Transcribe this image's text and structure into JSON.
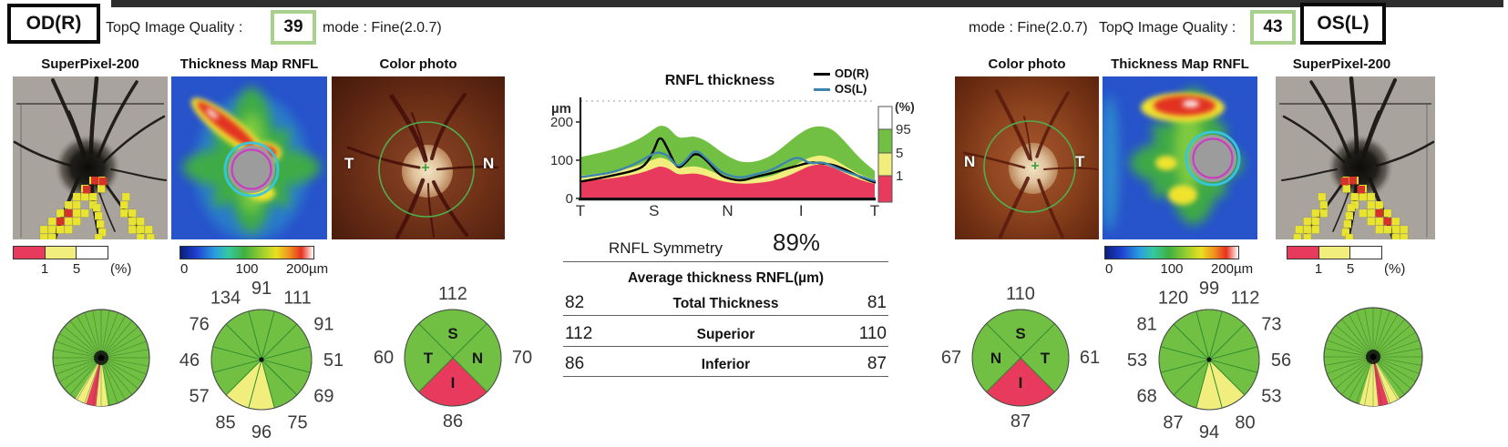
{
  "header": {
    "od": {
      "eye": "OD(R)",
      "quality_label": "TopQ Image Quality :",
      "quality_value": "39",
      "mode": "mode : Fine(2.0.7)"
    },
    "os": {
      "eye": "OS(L)",
      "quality_label": "TopQ Image Quality :",
      "quality_value": "43",
      "mode": "mode : Fine(2.0.7)"
    }
  },
  "panels": {
    "od": {
      "superpixel_label": "SuperPixel-200",
      "map_label": "Thickness Map RNFL",
      "photo_label": "Color photo",
      "photo_left": "T",
      "photo_right": "N",
      "pct_scale": {
        "t1": "1",
        "t5": "5",
        "unit": "(%)"
      },
      "um_scale": {
        "t0": "0",
        "t100": "100",
        "t200": "200µm"
      }
    },
    "os": {
      "superpixel_label": "SuperPixel-200",
      "map_label": "Thickness Map RNFL",
      "photo_label": "Color photo",
      "photo_left": "N",
      "photo_right": "T",
      "pct_scale": {
        "t1": "1",
        "t5": "5",
        "unit": "(%)"
      },
      "um_scale": {
        "t0": "0",
        "t100": "100",
        "t200": "200µm"
      }
    }
  },
  "summary": {
    "symmetry_label": "RNFL Symmetry",
    "symmetry_value": "89%",
    "table_title": "Average thickness RNFL(µm)",
    "rows": [
      {
        "od": "82",
        "label": "Total Thickness",
        "os": "81"
      },
      {
        "od": "112",
        "label": "Superior",
        "os": "110"
      },
      {
        "od": "86",
        "label": "Inferior",
        "os": "87"
      }
    ]
  },
  "colors": {
    "sector": {
      "n": "#72c043",
      "b": "#f2ee7d",
      "a": "#e83a5c"
    },
    "od_curve": "#000000",
    "os_curve": "#3d85b0",
    "quality_box_border": "#a9d18e",
    "heatmap_background": "#2753cb"
  },
  "chart_data": {
    "tsnit": {
      "type": "area+line",
      "title": "RNFL thickness",
      "y_unit": "µm",
      "y_ticks": [
        {
          "v": 200,
          "label": "200"
        },
        {
          "v": 100,
          "label": "100"
        },
        {
          "v": 0,
          "label": "0"
        }
      ],
      "x_ticks": [
        "T",
        "S",
        "N",
        "I",
        "T"
      ],
      "ylim": [
        0,
        240
      ],
      "x_percent": [
        0,
        6,
        12,
        18,
        22,
        25,
        27,
        30,
        33,
        36,
        39,
        43,
        47,
        51,
        55,
        60,
        65,
        70,
        74,
        78,
        82,
        86,
        90,
        95,
        100
      ],
      "series": [
        {
          "name": "OD(R)",
          "color": "#000000",
          "values": [
            44,
            52,
            62,
            72,
            85,
            125,
            168,
            125,
            75,
            95,
            122,
            100,
            62,
            50,
            46,
            58,
            66,
            78,
            86,
            95,
            92,
            88,
            76,
            56,
            42
          ]
        },
        {
          "name": "OS(L)",
          "color": "#3d85b0",
          "values": [
            56,
            62,
            70,
            88,
            105,
            118,
            121,
            112,
            80,
            100,
            130,
            104,
            72,
            58,
            54,
            64,
            74,
            96,
            110,
            90,
            96,
            84,
            70,
            58,
            46
          ]
        }
      ],
      "bands": {
        "green_top": [
          108,
          118,
          130,
          148,
          165,
          182,
          192,
          186,
          158,
          160,
          163,
          150,
          126,
          106,
          94,
          96,
          112,
          142,
          168,
          186,
          190,
          180,
          148,
          104,
          72
        ],
        "yellow_top": [
          60,
          65,
          72,
          82,
          93,
          102,
          108,
          101,
          80,
          82,
          85,
          77,
          62,
          54,
          48,
          52,
          58,
          74,
          92,
          108,
          114,
          104,
          84,
          62,
          50
        ],
        "red_top": [
          45,
          49,
          54,
          62,
          70,
          79,
          85,
          79,
          62,
          64,
          66,
          59,
          47,
          41,
          38,
          40,
          45,
          57,
          71,
          86,
          90,
          81,
          65,
          48,
          38
        ]
      },
      "scale_bar": {
        "unit": "(%)",
        "ticks": [
          "95",
          "5",
          "1"
        ]
      }
    },
    "od_clock": {
      "type": "pie",
      "values": [
        91,
        111,
        91,
        51,
        69,
        75,
        96,
        85,
        57,
        46,
        76,
        134
      ],
      "status": [
        "n",
        "n",
        "n",
        "n",
        "n",
        "n",
        "b",
        "b",
        "n",
        "n",
        "n",
        "n"
      ]
    },
    "os_clock": {
      "type": "pie",
      "values": [
        99,
        112,
        73,
        56,
        53,
        80,
        94,
        87,
        68,
        53,
        81,
        120
      ],
      "status": [
        "n",
        "n",
        "n",
        "n",
        "n",
        "b",
        "b",
        "n",
        "n",
        "n",
        "n",
        "n"
      ]
    },
    "od_quadrants": {
      "top": {
        "letter": "S",
        "value": "112",
        "status": "n"
      },
      "right": {
        "letter": "N",
        "value": "70",
        "status": "n"
      },
      "bottom": {
        "letter": "I",
        "value": "86",
        "status": "a"
      },
      "left": {
        "letter": "T",
        "value": "60",
        "status": "n"
      }
    },
    "os_quadrants": {
      "top": {
        "letter": "S",
        "value": "110",
        "status": "n"
      },
      "right": {
        "letter": "T",
        "value": "61",
        "status": "n"
      },
      "bottom": {
        "letter": "I",
        "value": "87",
        "status": "a"
      },
      "left": {
        "letter": "N",
        "value": "67",
        "status": "n"
      }
    },
    "od_superpixel_pie": {
      "type": "pie",
      "borderline_deg": [
        [
          172,
          186
        ],
        [
          198,
          212
        ]
      ],
      "abnormal_deg": [
        [
          186,
          198
        ]
      ]
    },
    "os_superpixel_pie": {
      "type": "pie",
      "borderline_deg": [
        [
          148,
          162
        ],
        [
          174,
          196
        ]
      ],
      "abnormal_deg": [
        [
          162,
          174
        ]
      ]
    }
  }
}
